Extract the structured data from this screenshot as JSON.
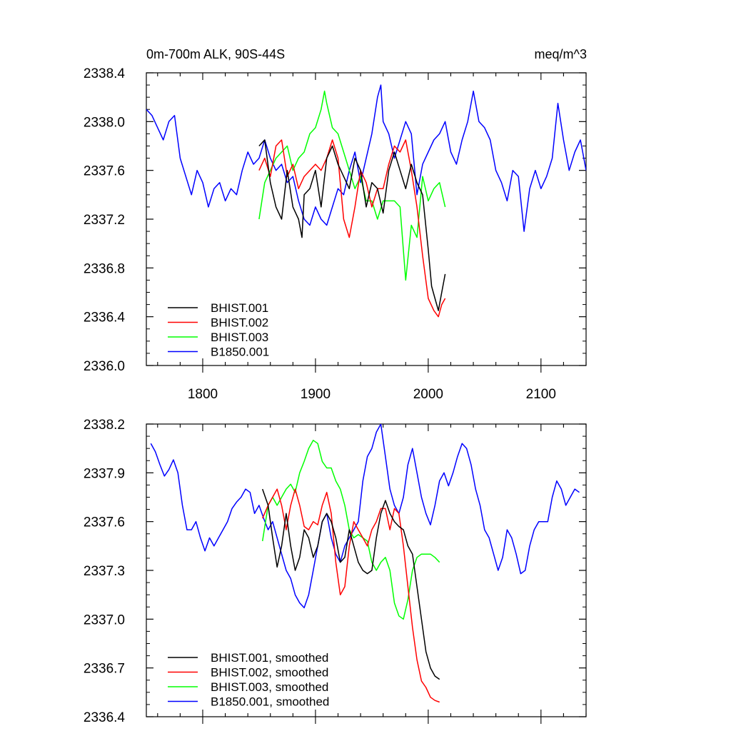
{
  "panels": [
    {
      "title_left": "0m-700m ALK, 90S-44S",
      "title_right": "meq/m^3"
    },
    {
      "title_left": "",
      "title_right": ""
    }
  ],
  "chart_data": [
    {
      "type": "line",
      "title": "0m-700m ALK, 90S-44S",
      "units": "meq/m^3",
      "xlim": [
        1750,
        2140
      ],
      "ylim": [
        2336.0,
        2338.4
      ],
      "x_ticks": [
        1800,
        1900,
        2000,
        2100
      ],
      "x_tick_labels": [
        "1800",
        "1900",
        "2000",
        "2100"
      ],
      "y_ticks": [
        2336.0,
        2336.4,
        2336.8,
        2337.2,
        2337.6,
        2338.0,
        2338.4
      ],
      "y_tick_labels": [
        "2336.0",
        "2336.4",
        "2336.8",
        "2337.2",
        "2337.6",
        "2338.0",
        "2338.4"
      ],
      "legend_position": "bottom-left",
      "series": [
        {
          "name": "BHIST.001",
          "color": "#000000",
          "x": [
            1850,
            1855,
            1860,
            1865,
            1870,
            1875,
            1880,
            1885,
            1888,
            1890,
            1895,
            1900,
            1905,
            1910,
            1915,
            1920,
            1925,
            1930,
            1935,
            1940,
            1945,
            1950,
            1955,
            1960,
            1965,
            1970,
            1975,
            1980,
            1985,
            1990,
            1995,
            2000,
            2003,
            2006,
            2009,
            2012,
            2015
          ],
          "y": [
            2337.8,
            2337.85,
            2337.5,
            2337.3,
            2337.2,
            2337.6,
            2337.3,
            2337.2,
            2337.05,
            2337.4,
            2337.45,
            2337.6,
            2337.3,
            2337.7,
            2337.8,
            2337.65,
            2337.55,
            2337.45,
            2337.7,
            2337.6,
            2337.3,
            2337.5,
            2337.45,
            2337.25,
            2337.6,
            2337.75,
            2337.6,
            2337.45,
            2337.65,
            2337.5,
            2337.4,
            2336.95,
            2336.65,
            2336.55,
            2336.45,
            2336.6,
            2336.75
          ]
        },
        {
          "name": "BHIST.002",
          "color": "#ff0000",
          "x": [
            1850,
            1855,
            1860,
            1865,
            1870,
            1875,
            1880,
            1885,
            1890,
            1895,
            1900,
            1905,
            1910,
            1915,
            1920,
            1925,
            1930,
            1935,
            1940,
            1945,
            1950,
            1955,
            1960,
            1965,
            1970,
            1975,
            1980,
            1985,
            1990,
            1995,
            2000,
            2005,
            2009,
            2012,
            2015
          ],
          "y": [
            2337.6,
            2337.7,
            2337.55,
            2337.8,
            2337.85,
            2337.55,
            2337.65,
            2337.45,
            2337.55,
            2337.6,
            2337.65,
            2337.6,
            2337.7,
            2337.85,
            2337.7,
            2337.2,
            2337.05,
            2337.3,
            2337.6,
            2337.5,
            2337.3,
            2337.45,
            2337.45,
            2337.65,
            2337.8,
            2337.75,
            2337.85,
            2337.6,
            2337.3,
            2336.9,
            2336.55,
            2336.45,
            2336.4,
            2336.5,
            2336.55
          ]
        },
        {
          "name": "BHIST.003",
          "color": "#00ff00",
          "x": [
            1850,
            1855,
            1860,
            1865,
            1870,
            1875,
            1880,
            1885,
            1890,
            1895,
            1900,
            1905,
            1908,
            1910,
            1915,
            1920,
            1925,
            1930,
            1935,
            1940,
            1945,
            1950,
            1955,
            1960,
            1965,
            1970,
            1975,
            1980,
            1985,
            1990,
            1995,
            2000,
            2005,
            2010,
            2015
          ],
          "y": [
            2337.2,
            2337.5,
            2337.6,
            2337.7,
            2337.75,
            2337.8,
            2337.6,
            2337.7,
            2337.75,
            2337.9,
            2337.95,
            2338.1,
            2338.25,
            2338.15,
            2337.95,
            2337.9,
            2337.75,
            2337.6,
            2337.45,
            2337.55,
            2337.35,
            2337.35,
            2337.2,
            2337.35,
            2337.35,
            2337.35,
            2337.3,
            2336.7,
            2337.15,
            2337.05,
            2337.55,
            2337.35,
            2337.45,
            2337.5,
            2337.3
          ]
        },
        {
          "name": "B1850.001",
          "color": "#0000ff",
          "x": [
            1750,
            1755,
            1760,
            1765,
            1770,
            1775,
            1780,
            1785,
            1790,
            1795,
            1800,
            1805,
            1810,
            1815,
            1820,
            1825,
            1830,
            1835,
            1840,
            1845,
            1850,
            1855,
            1860,
            1865,
            1870,
            1875,
            1880,
            1885,
            1890,
            1895,
            1900,
            1905,
            1910,
            1915,
            1920,
            1925,
            1930,
            1935,
            1940,
            1945,
            1950,
            1955,
            1958,
            1960,
            1965,
            1970,
            1975,
            1980,
            1985,
            1990,
            1995,
            2000,
            2005,
            2010,
            2015,
            2020,
            2025,
            2030,
            2035,
            2040,
            2045,
            2050,
            2055,
            2060,
            2065,
            2070,
            2075,
            2080,
            2085,
            2090,
            2095,
            2100,
            2105,
            2110,
            2115,
            2120,
            2125,
            2130,
            2135,
            2140
          ],
          "y": [
            2338.1,
            2338.05,
            2337.95,
            2337.85,
            2338.0,
            2338.05,
            2337.7,
            2337.55,
            2337.4,
            2337.6,
            2337.5,
            2337.3,
            2337.45,
            2337.5,
            2337.35,
            2337.45,
            2337.4,
            2337.6,
            2337.75,
            2337.65,
            2337.7,
            2337.85,
            2337.7,
            2337.6,
            2337.65,
            2337.5,
            2337.55,
            2337.35,
            2337.2,
            2337.15,
            2337.3,
            2337.2,
            2337.15,
            2337.3,
            2337.45,
            2337.4,
            2337.6,
            2337.75,
            2337.5,
            2337.7,
            2337.9,
            2338.2,
            2338.3,
            2338.0,
            2337.9,
            2337.7,
            2337.85,
            2338.0,
            2337.9,
            2337.4,
            2337.65,
            2337.75,
            2337.85,
            2337.9,
            2338.0,
            2337.75,
            2337.65,
            2337.85,
            2338.0,
            2338.25,
            2338.0,
            2337.95,
            2337.85,
            2337.6,
            2337.5,
            2337.35,
            2337.6,
            2337.55,
            2337.1,
            2337.45,
            2337.6,
            2337.45,
            2337.55,
            2337.7,
            2338.15,
            2337.85,
            2337.6,
            2337.75,
            2337.85,
            2337.6
          ]
        }
      ]
    },
    {
      "type": "line",
      "xlim": [
        1750,
        2140
      ],
      "ylim": [
        2336.4,
        2338.2
      ],
      "x_ticks": [
        1800,
        1900,
        2000,
        2100
      ],
      "x_tick_labels": [
        "",
        "",
        "",
        ""
      ],
      "y_ticks": [
        2336.4,
        2336.7,
        2337.0,
        2337.3,
        2337.6,
        2337.9,
        2338.2
      ],
      "y_tick_labels": [
        "2336.4",
        "2336.7",
        "2337.0",
        "2337.3",
        "2337.6",
        "2337.9",
        "2338.2"
      ],
      "legend_position": "bottom-left",
      "series": [
        {
          "name": "BHIST.001, smoothed",
          "color": "#000000",
          "x": [
            1853,
            1858,
            1862,
            1866,
            1870,
            1874,
            1878,
            1882,
            1886,
            1890,
            1894,
            1898,
            1902,
            1906,
            1910,
            1914,
            1918,
            1922,
            1926,
            1930,
            1934,
            1938,
            1942,
            1946,
            1950,
            1954,
            1958,
            1962,
            1966,
            1970,
            1974,
            1978,
            1982,
            1986,
            1990,
            1994,
            1998,
            2002,
            2006,
            2010
          ],
          "y": [
            2337.8,
            2337.7,
            2337.5,
            2337.32,
            2337.45,
            2337.65,
            2337.45,
            2337.3,
            2337.38,
            2337.55,
            2337.5,
            2337.38,
            2337.45,
            2337.6,
            2337.65,
            2337.6,
            2337.5,
            2337.35,
            2337.38,
            2337.55,
            2337.45,
            2337.35,
            2337.3,
            2337.28,
            2337.3,
            2337.5,
            2337.65,
            2337.73,
            2337.65,
            2337.6,
            2337.57,
            2337.55,
            2337.45,
            2337.4,
            2337.2,
            2337.0,
            2336.8,
            2336.7,
            2336.65,
            2336.63
          ]
        },
        {
          "name": "BHIST.002, smoothed",
          "color": "#ff0000",
          "x": [
            1853,
            1858,
            1862,
            1866,
            1870,
            1874,
            1878,
            1882,
            1886,
            1890,
            1894,
            1898,
            1902,
            1906,
            1910,
            1914,
            1918,
            1922,
            1926,
            1930,
            1934,
            1938,
            1942,
            1946,
            1950,
            1954,
            1958,
            1962,
            1966,
            1970,
            1974,
            1978,
            1982,
            1986,
            1990,
            1994,
            1998,
            2002,
            2006,
            2010
          ],
          "y": [
            2337.62,
            2337.7,
            2337.75,
            2337.8,
            2337.7,
            2337.55,
            2337.7,
            2337.8,
            2337.7,
            2337.57,
            2337.55,
            2337.6,
            2337.58,
            2337.7,
            2337.78,
            2337.65,
            2337.35,
            2337.15,
            2337.2,
            2337.45,
            2337.6,
            2337.55,
            2337.5,
            2337.45,
            2337.55,
            2337.6,
            2337.68,
            2337.68,
            2337.55,
            2337.68,
            2337.65,
            2337.45,
            2337.2,
            2336.95,
            2336.75,
            2336.62,
            2336.58,
            2336.52,
            2336.5,
            2336.49
          ]
        },
        {
          "name": "BHIST.003, smoothed",
          "color": "#00ff00",
          "x": [
            1853,
            1858,
            1862,
            1866,
            1870,
            1874,
            1878,
            1882,
            1886,
            1890,
            1894,
            1898,
            1902,
            1906,
            1910,
            1914,
            1918,
            1922,
            1926,
            1930,
            1934,
            1938,
            1942,
            1946,
            1950,
            1954,
            1958,
            1962,
            1966,
            1970,
            1974,
            1978,
            1982,
            1986,
            1990,
            1994,
            1998,
            2002,
            2006,
            2010
          ],
          "y": [
            2337.48,
            2337.7,
            2337.75,
            2337.7,
            2337.75,
            2337.8,
            2337.83,
            2337.78,
            2337.9,
            2337.97,
            2338.05,
            2338.1,
            2338.08,
            2337.97,
            2337.93,
            2337.93,
            2337.85,
            2337.8,
            2337.7,
            2337.55,
            2337.5,
            2337.52,
            2337.5,
            2337.48,
            2337.35,
            2337.3,
            2337.35,
            2337.38,
            2337.3,
            2337.1,
            2337.02,
            2337.0,
            2337.12,
            2337.3,
            2337.38,
            2337.4,
            2337.4,
            2337.4,
            2337.38,
            2337.35
          ]
        },
        {
          "name": "B1850.001, smoothed",
          "color": "#0000ff",
          "x": [
            1754,
            1758,
            1762,
            1766,
            1770,
            1774,
            1778,
            1782,
            1786,
            1790,
            1794,
            1798,
            1802,
            1806,
            1810,
            1814,
            1818,
            1822,
            1826,
            1830,
            1834,
            1838,
            1842,
            1846,
            1850,
            1854,
            1858,
            1862,
            1866,
            1870,
            1874,
            1878,
            1882,
            1886,
            1890,
            1894,
            1898,
            1902,
            1906,
            1910,
            1914,
            1918,
            1922,
            1926,
            1930,
            1934,
            1938,
            1942,
            1946,
            1950,
            1954,
            1958,
            1962,
            1966,
            1970,
            1974,
            1978,
            1982,
            1986,
            1990,
            1994,
            1998,
            2002,
            2006,
            2010,
            2014,
            2018,
            2022,
            2026,
            2030,
            2034,
            2038,
            2042,
            2046,
            2050,
            2054,
            2058,
            2062,
            2066,
            2070,
            2074,
            2078,
            2082,
            2086,
            2090,
            2094,
            2098,
            2102,
            2106,
            2110,
            2114,
            2118,
            2122,
            2126,
            2130,
            2134
          ],
          "y": [
            2338.08,
            2338.03,
            2337.95,
            2337.88,
            2337.92,
            2337.98,
            2337.9,
            2337.7,
            2337.55,
            2337.55,
            2337.6,
            2337.5,
            2337.42,
            2337.5,
            2337.45,
            2337.5,
            2337.55,
            2337.6,
            2337.68,
            2337.72,
            2337.75,
            2337.8,
            2337.78,
            2337.65,
            2337.7,
            2337.62,
            2337.55,
            2337.6,
            2337.5,
            2337.4,
            2337.3,
            2337.25,
            2337.15,
            2337.1,
            2337.07,
            2337.15,
            2337.3,
            2337.45,
            2337.6,
            2337.65,
            2337.5,
            2337.4,
            2337.35,
            2337.45,
            2337.5,
            2337.55,
            2337.6,
            2337.85,
            2338.0,
            2338.05,
            2338.15,
            2338.2,
            2338.0,
            2337.8,
            2337.7,
            2337.65,
            2337.75,
            2337.95,
            2338.05,
            2337.9,
            2337.75,
            2337.65,
            2337.58,
            2337.7,
            2337.85,
            2337.9,
            2337.82,
            2337.9,
            2338.0,
            2338.08,
            2338.05,
            2337.95,
            2337.8,
            2337.7,
            2337.55,
            2337.5,
            2337.4,
            2337.3,
            2337.38,
            2337.55,
            2337.5,
            2337.4,
            2337.28,
            2337.3,
            2337.45,
            2337.55,
            2337.6,
            2337.6,
            2337.6,
            2337.75,
            2337.85,
            2337.8,
            2337.7,
            2337.75,
            2337.8,
            2337.78
          ]
        }
      ]
    }
  ]
}
